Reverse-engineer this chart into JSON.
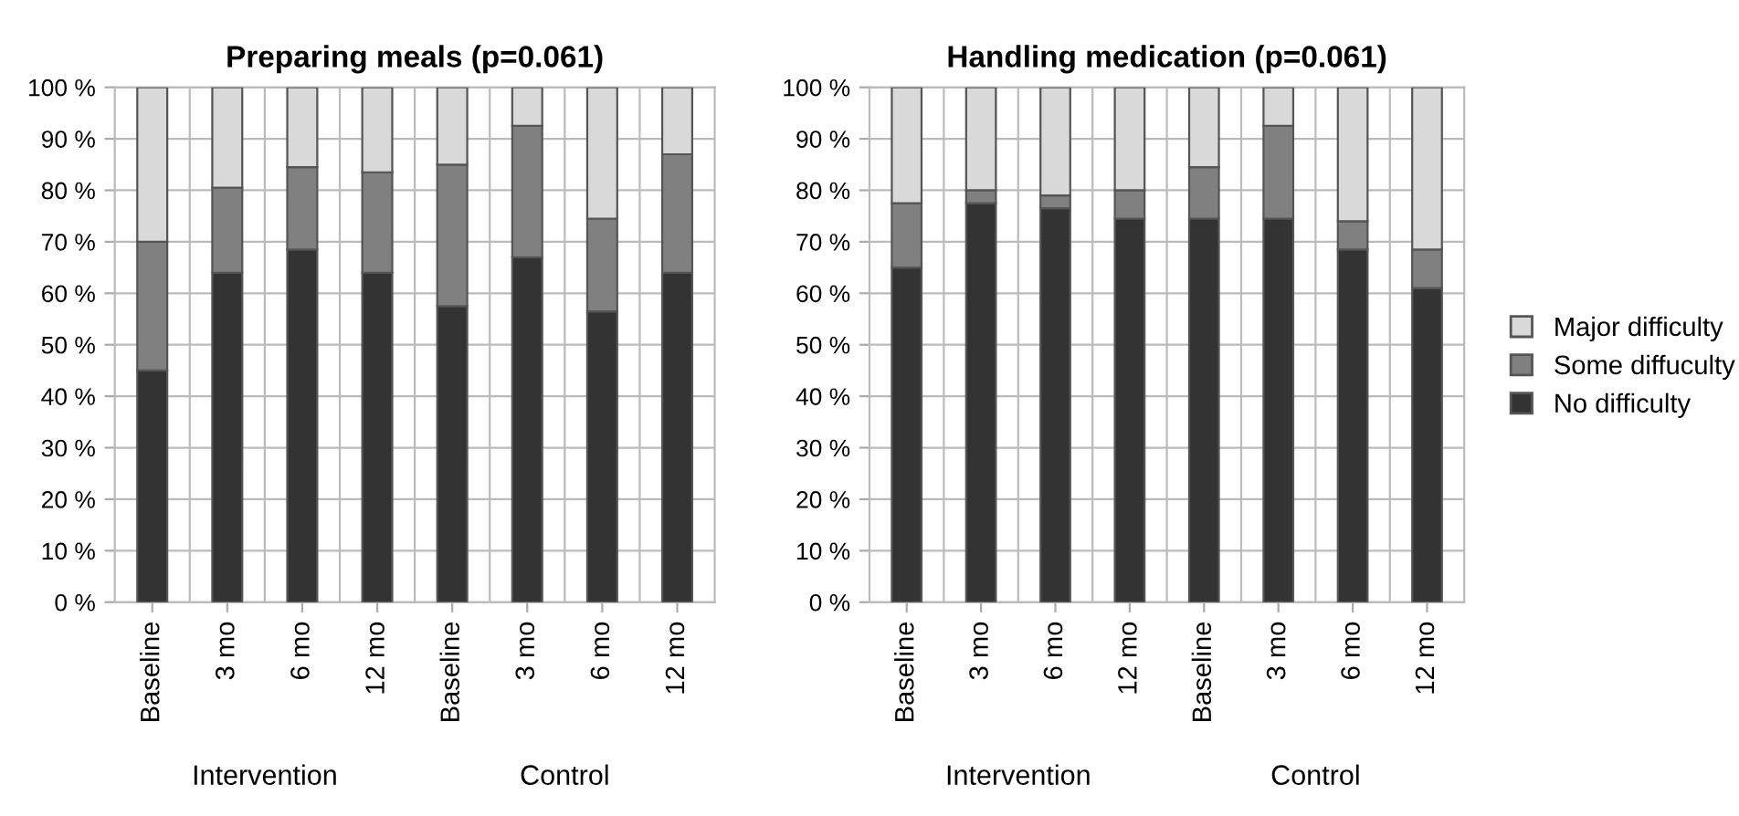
{
  "chart_data": [
    {
      "type": "bar",
      "stacked": true,
      "title": "Preparing meals (p=0.061)",
      "categories": [
        "Baseline",
        "3 mo",
        "6 mo",
        "12 mo",
        "Baseline",
        "3 mo",
        "6 mo",
        "12 mo"
      ],
      "series": [
        {
          "color": "#333333",
          "values": [
            45,
            64,
            68.5,
            64,
            57.5,
            67,
            56.5,
            64
          ]
        },
        {
          "color": "#808080",
          "values": [
            25,
            16.5,
            16,
            19.5,
            27.5,
            25.5,
            18,
            23
          ]
        },
        {
          "color": "#d9d9d9",
          "values": [
            30,
            19.5,
            15.5,
            16.5,
            15,
            7.5,
            25.5,
            13
          ]
        }
      ],
      "ylim": [
        0,
        100
      ],
      "yticks": [
        {
          "value": 0,
          "label": "0 %"
        },
        {
          "value": 10,
          "label": "10 %"
        },
        {
          "value": 20,
          "label": "20 %"
        },
        {
          "value": 30,
          "label": "30 %"
        },
        {
          "value": 40,
          "label": "40 %"
        },
        {
          "value": 50,
          "label": "50 %"
        },
        {
          "value": 60,
          "label": "60 %"
        },
        {
          "value": 70,
          "label": "70 %"
        },
        {
          "value": 80,
          "label": "80 %"
        },
        {
          "value": 90,
          "label": "90 %"
        },
        {
          "value": 100,
          "label": "100 %"
        }
      ],
      "annotations": [
        "Intervention",
        "Control"
      ],
      "grid": true,
      "legend": "right"
    },
    {
      "type": "bar",
      "stacked": true,
      "title": "Handling medication (p=0.061)",
      "categories": [
        "Baseline",
        "3 mo",
        "6 mo",
        "12 mo",
        "Baseline",
        "3 mo",
        "6 mo",
        "12 mo"
      ],
      "series": [
        {
          "name": "No difficulty",
          "color": "#333333",
          "values": [
            65,
            77.5,
            76.5,
            74.5,
            74.5,
            74.5,
            68.5,
            61
          ]
        },
        {
          "name": "Some diffuculty",
          "color": "#808080",
          "values": [
            12.5,
            2.5,
            2.5,
            5.5,
            10,
            18,
            5.5,
            7.5
          ]
        },
        {
          "name": "Major difficulty",
          "color": "#d9d9d9",
          "values": [
            22.5,
            20,
            21,
            20,
            15.5,
            7.5,
            26,
            31.5
          ]
        }
      ],
      "ylim": [
        0,
        100
      ],
      "yticks": [
        {
          "value": 0,
          "label": "0 %"
        },
        {
          "value": 10,
          "label": "10 %"
        },
        {
          "value": 20,
          "label": "20 %"
        },
        {
          "value": 30,
          "label": "30 %"
        },
        {
          "value": 40,
          "label": "40 %"
        },
        {
          "value": 50,
          "label": "50 %"
        },
        {
          "value": 60,
          "label": "60 %"
        },
        {
          "value": 70,
          "label": "70 %"
        },
        {
          "value": 80,
          "label": "80 %"
        },
        {
          "value": 90,
          "label": "90 %"
        },
        {
          "value": 100,
          "label": "100 %"
        }
      ],
      "annotations": [
        "Intervention",
        "Control"
      ],
      "grid": true,
      "legend": "right"
    }
  ]
}
